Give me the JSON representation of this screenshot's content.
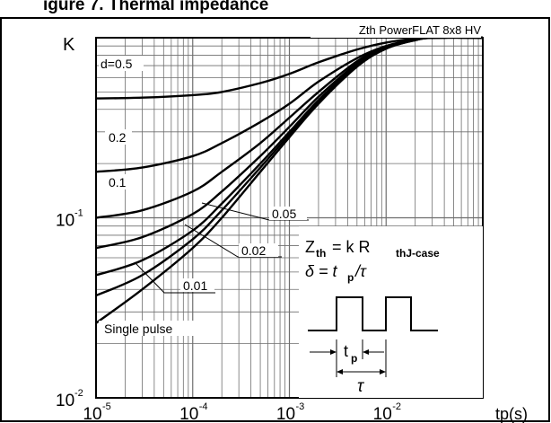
{
  "chart_data": {
    "type": "line",
    "title": "",
    "header_fragment": "igure 7. Thermal impedance",
    "subtitle": "Zth PowerFLAT 8x8 HV",
    "ylabel": "K",
    "xlabel": "tp(s)",
    "x_scale": "log",
    "y_scale": "log",
    "xlim": [
      1e-05,
      0.1
    ],
    "ylim": [
      0.01,
      1
    ],
    "x_ticks": [
      {
        "value": 1e-05,
        "mantissa": "10",
        "exponent": "-5"
      },
      {
        "value": 0.0001,
        "mantissa": "10",
        "exponent": "-4"
      },
      {
        "value": 0.001,
        "mantissa": "10",
        "exponent": "-3"
      },
      {
        "value": 0.01,
        "mantissa": "10",
        "exponent": "-2"
      }
    ],
    "y_ticks": [
      {
        "value": 0.1,
        "mantissa": "10",
        "exponent": "-1"
      },
      {
        "value": 0.01,
        "mantissa": "10",
        "exponent": "-2"
      }
    ],
    "grid": true,
    "series": [
      {
        "name": "d=0.5",
        "x": [
          1e-05,
          3e-05,
          0.0001,
          0.0002,
          0.0005,
          0.001,
          0.002,
          0.005,
          0.01,
          0.02,
          0.03,
          0.1
        ],
        "y": [
          0.46,
          0.465,
          0.48,
          0.5,
          0.56,
          0.63,
          0.73,
          0.86,
          0.94,
          0.99,
          1.0,
          1.0
        ]
      },
      {
        "name": "0.2",
        "x": [
          1e-05,
          3e-05,
          0.0001,
          0.0002,
          0.0005,
          0.001,
          0.002,
          0.005,
          0.01,
          0.02,
          0.03,
          0.1
        ],
        "y": [
          0.18,
          0.19,
          0.22,
          0.26,
          0.34,
          0.43,
          0.57,
          0.77,
          0.9,
          0.98,
          1.0,
          1.0
        ]
      },
      {
        "name": "0.1",
        "x": [
          1e-05,
          3e-05,
          0.0001,
          0.0002,
          0.0005,
          0.001,
          0.002,
          0.005,
          0.01,
          0.02,
          0.03,
          0.1
        ],
        "y": [
          0.1,
          0.11,
          0.14,
          0.18,
          0.26,
          0.36,
          0.5,
          0.74,
          0.89,
          0.97,
          1.0,
          1.0
        ]
      },
      {
        "name": "0.05",
        "x": [
          1e-05,
          3e-05,
          0.0001,
          0.0002,
          0.0005,
          0.001,
          0.002,
          0.005,
          0.01,
          0.02,
          0.03,
          0.1
        ],
        "y": [
          0.068,
          0.078,
          0.105,
          0.14,
          0.22,
          0.32,
          0.47,
          0.72,
          0.88,
          0.97,
          1.0,
          1.0
        ]
      },
      {
        "name": "0.02",
        "x": [
          1e-05,
          3e-05,
          0.0001,
          0.0002,
          0.0005,
          0.001,
          0.002,
          0.005,
          0.01,
          0.02,
          0.03,
          0.1
        ],
        "y": [
          0.048,
          0.058,
          0.085,
          0.12,
          0.2,
          0.3,
          0.45,
          0.71,
          0.88,
          0.97,
          1.0,
          1.0
        ]
      },
      {
        "name": "0.01",
        "x": [
          1e-05,
          3e-05,
          0.0001,
          0.0002,
          0.0005,
          0.001,
          0.002,
          0.005,
          0.01,
          0.02,
          0.03,
          0.1
        ],
        "y": [
          0.037,
          0.048,
          0.076,
          0.11,
          0.19,
          0.29,
          0.44,
          0.7,
          0.87,
          0.97,
          1.0,
          1.0
        ]
      },
      {
        "name": "Single pulse",
        "x": [
          1e-05,
          3e-05,
          0.0001,
          0.0002,
          0.0005,
          0.001,
          0.002,
          0.005,
          0.01,
          0.02,
          0.03,
          0.1
        ],
        "y": [
          0.026,
          0.04,
          0.068,
          0.1,
          0.18,
          0.28,
          0.43,
          0.69,
          0.87,
          0.97,
          1.0,
          1.0
        ]
      }
    ],
    "series_labels": [
      {
        "series": "d=0.5",
        "text": "d=0.5"
      },
      {
        "series": "0.2",
        "text": "0.2"
      },
      {
        "series": "0.1",
        "text": "0.1"
      },
      {
        "series": "0.05",
        "text": "0.05"
      },
      {
        "series": "0.02",
        "text": "0.02"
      },
      {
        "series": "0.01",
        "text": "0.01"
      },
      {
        "series": "Single pulse",
        "text": "Single pulse"
      }
    ],
    "annotations": {
      "formula_zth": {
        "lhs": "Z",
        "lhs_sub": "th",
        "rhs": "= k R",
        "rhs_sub": "thJ-case"
      },
      "formula_delta": {
        "text": "δ = t",
        "sub": "p",
        "tail": "/τ"
      },
      "pulse_tp": {
        "text": "t",
        "sub": "p"
      },
      "pulse_tau": "τ"
    }
  }
}
